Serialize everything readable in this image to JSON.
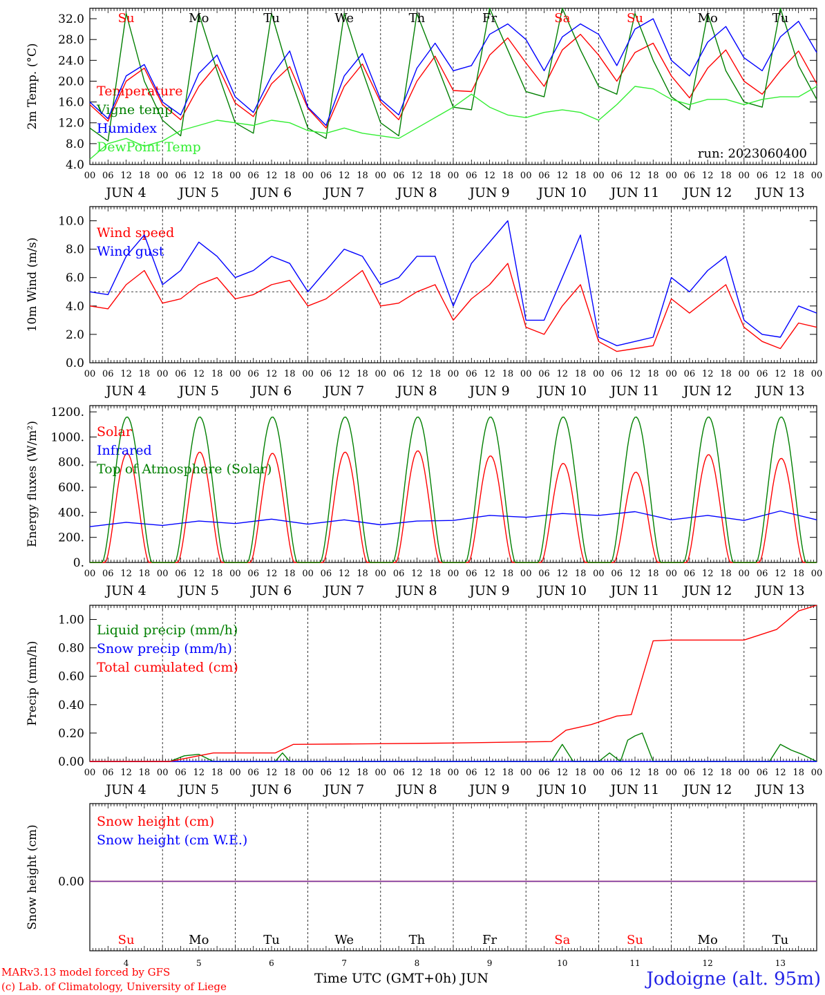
{
  "chart_data": [
    {
      "type": "line",
      "ylabel": "2m Temp. (°C)",
      "ylim": [
        4,
        34
      ],
      "yticks": [
        "4.0",
        "8.0",
        "12.0",
        "16.0",
        "20.0",
        "24.0",
        "28.0",
        "32.0"
      ],
      "ytick_values": [
        4,
        8,
        12,
        16,
        20,
        24,
        28,
        32
      ],
      "annotation": "run: 2023060400",
      "legend_placement": "left",
      "weekday_labels": [
        "Su",
        "Mo",
        "Tu",
        "We",
        "Th",
        "Fr",
        "Sa",
        "Su",
        "Mo",
        "Tu"
      ],
      "weekday_colors": [
        "#ff0000",
        "#000000",
        "#000000",
        "#000000",
        "#000000",
        "#000000",
        "#ff0000",
        "#ff0000",
        "#000000",
        "#000000"
      ],
      "series": [
        {
          "name": "Temperature",
          "color": "#ff0000",
          "x": [
            0,
            0.25,
            0.5,
            0.75,
            1,
            1.25,
            1.5,
            1.75,
            2,
            2.25,
            2.5,
            2.75,
            3,
            3.25,
            3.5,
            3.75,
            4,
            4.25,
            4.5,
            4.75,
            5,
            5.25,
            5.5,
            5.75,
            6,
            6.25,
            6.5,
            6.75,
            7,
            7.25,
            7.5,
            7.75,
            8,
            8.25,
            8.5,
            8.75,
            9,
            9.25,
            9.5,
            9.75,
            10
          ],
          "values": [
            15.5,
            12.3,
            20.0,
            22.5,
            15.5,
            12.6,
            19.0,
            23.2,
            15.8,
            13.2,
            19.5,
            22.8,
            14.8,
            11.0,
            19.0,
            23.3,
            16.0,
            12.6,
            20.0,
            24.8,
            18.2,
            18.0,
            25.0,
            28.3,
            23.5,
            19.0,
            26.0,
            29.0,
            25.0,
            20.0,
            25.5,
            27.3,
            21.0,
            16.8,
            22.5,
            26.0,
            20.0,
            17.5,
            22.0,
            25.8,
            19.5
          ]
        },
        {
          "name": "Vigne temp",
          "color": "#007f00",
          "x": [
            0,
            0.25,
            0.5,
            0.75,
            1,
            1.25,
            1.5,
            1.75,
            2,
            2.25,
            2.5,
            2.75,
            3,
            3.25,
            3.5,
            3.75,
            4,
            4.25,
            4.5,
            4.75,
            5,
            5.25,
            5.5,
            5.75,
            6,
            6.25,
            6.5,
            6.75,
            7,
            7.25,
            7.5,
            7.75,
            8,
            8.25,
            8.5,
            8.75,
            9,
            9.25,
            9.5,
            9.75,
            10
          ],
          "values": [
            11.0,
            8.5,
            33.0,
            20.0,
            12.5,
            9.5,
            33.0,
            22.0,
            12.0,
            10.0,
            33.0,
            21.0,
            11.0,
            9.0,
            33.0,
            22.0,
            12.0,
            9.5,
            33.0,
            24.0,
            15.0,
            14.5,
            34.0,
            26.0,
            18.0,
            17.0,
            34.0,
            26.0,
            19.0,
            17.5,
            33.0,
            24.0,
            17.0,
            14.5,
            33.0,
            22.0,
            16.0,
            15.0,
            34.0,
            23.0,
            16.5
          ]
        },
        {
          "name": "Humidex",
          "color": "#0000ff",
          "x": [
            0,
            0.25,
            0.5,
            0.75,
            1,
            1.25,
            1.5,
            1.75,
            2,
            2.25,
            2.5,
            2.75,
            3,
            3.25,
            3.5,
            3.75,
            4,
            4.25,
            4.5,
            4.75,
            5,
            5.25,
            5.5,
            5.75,
            6,
            6.25,
            6.5,
            6.75,
            7,
            7.25,
            7.5,
            7.75,
            8,
            8.25,
            8.5,
            8.75,
            9,
            9.25,
            9.5,
            9.75,
            10
          ],
          "values": [
            16.0,
            12.8,
            21.0,
            23.2,
            16.0,
            13.5,
            21.5,
            25.0,
            17.0,
            14.0,
            21.0,
            25.8,
            15.0,
            11.5,
            21.0,
            25.3,
            16.5,
            13.5,
            22.5,
            27.3,
            22.0,
            23.0,
            29.0,
            31.0,
            28.0,
            22.0,
            28.5,
            31.0,
            29.0,
            23.0,
            30.0,
            32.0,
            24.0,
            21.0,
            27.5,
            30.5,
            24.5,
            22.0,
            28.5,
            31.5,
            25.5
          ]
        },
        {
          "name": "DewPoint Temp",
          "color": "#33ee33",
          "x": [
            0,
            0.25,
            0.5,
            0.75,
            1,
            1.25,
            1.5,
            1.75,
            2,
            2.25,
            2.5,
            2.75,
            3,
            3.25,
            3.5,
            3.75,
            4,
            4.25,
            4.5,
            4.75,
            5,
            5.25,
            5.5,
            5.75,
            6,
            6.25,
            6.5,
            6.75,
            7,
            7.25,
            7.5,
            7.75,
            8,
            8.25,
            8.5,
            8.75,
            9,
            9.25,
            9.5,
            9.75,
            10
          ],
          "values": [
            5.0,
            8.0,
            9.0,
            7.5,
            8.5,
            10.5,
            11.5,
            12.5,
            12.0,
            11.5,
            12.5,
            12.0,
            10.5,
            10.0,
            11.0,
            10.0,
            9.5,
            9.0,
            11.0,
            13.0,
            15.0,
            17.5,
            15.0,
            13.5,
            13.0,
            14.0,
            14.5,
            14.0,
            12.5,
            15.5,
            19.0,
            18.5,
            16.5,
            15.5,
            16.5,
            16.5,
            15.5,
            16.5,
            17.0,
            17.0,
            19.0
          ]
        }
      ]
    },
    {
      "type": "line",
      "ylabel": "10m Wind (m/s)",
      "ylim": [
        0,
        11
      ],
      "yticks": [
        "0.0",
        "2.0",
        "4.0",
        "6.0",
        "8.0",
        "10.0"
      ],
      "ytick_values": [
        0,
        2,
        4,
        6,
        8,
        10
      ],
      "reference_line": 5,
      "legend_placement": "top-left",
      "series": [
        {
          "name": "Wind speed",
          "color": "#ff0000",
          "x": [
            0,
            0.25,
            0.5,
            0.75,
            1,
            1.25,
            1.5,
            1.75,
            2,
            2.25,
            2.5,
            2.75,
            3,
            3.25,
            3.5,
            3.75,
            4,
            4.25,
            4.5,
            4.75,
            5,
            5.25,
            5.5,
            5.75,
            6,
            6.25,
            6.5,
            6.75,
            7,
            7.25,
            7.5,
            7.75,
            8,
            8.25,
            8.5,
            8.75,
            9,
            9.25,
            9.5,
            9.75,
            10
          ],
          "values": [
            4.0,
            3.8,
            5.5,
            6.5,
            4.2,
            4.5,
            5.5,
            6.0,
            4.5,
            4.8,
            5.5,
            5.8,
            4.0,
            4.5,
            5.5,
            6.5,
            4.0,
            4.2,
            5.0,
            5.5,
            3.0,
            4.5,
            5.5,
            7.0,
            2.5,
            2.0,
            4.0,
            5.5,
            1.5,
            0.8,
            1.0,
            1.2,
            4.5,
            3.5,
            4.5,
            5.5,
            2.5,
            1.5,
            1.0,
            2.8,
            2.5
          ]
        },
        {
          "name": "Wind gust",
          "color": "#0000ff",
          "x": [
            0,
            0.25,
            0.5,
            0.75,
            1,
            1.25,
            1.5,
            1.75,
            2,
            2.25,
            2.5,
            2.75,
            3,
            3.25,
            3.5,
            3.75,
            4,
            4.25,
            4.5,
            4.75,
            5,
            5.25,
            5.5,
            5.75,
            6,
            6.25,
            6.5,
            6.75,
            7,
            7.25,
            7.5,
            7.75,
            8,
            8.25,
            8.5,
            8.75,
            9,
            9.25,
            9.5,
            9.75,
            10
          ],
          "values": [
            5.0,
            4.8,
            7.5,
            9.0,
            5.5,
            6.5,
            8.5,
            7.5,
            6.0,
            6.5,
            7.5,
            7.0,
            5.0,
            6.5,
            8.0,
            7.5,
            5.5,
            6.0,
            7.5,
            7.5,
            4.0,
            7.0,
            8.5,
            10.0,
            3.0,
            3.0,
            6.0,
            9.0,
            1.8,
            1.2,
            1.5,
            1.8,
            6.0,
            5.0,
            6.5,
            7.5,
            3.0,
            2.0,
            1.8,
            4.0,
            3.5
          ]
        }
      ]
    },
    {
      "type": "line",
      "ylabel": "Energy fluxes (W/m²)",
      "ylim": [
        0,
        1250
      ],
      "yticks": [
        "0.",
        "200.",
        "400.",
        "600.",
        "800.",
        "1000.",
        "1200."
      ],
      "ytick_values": [
        0,
        200,
        400,
        600,
        800,
        1000,
        1200
      ],
      "legend_placement": "top-left",
      "series": [
        {
          "name": "Solar",
          "color": "#ff0000",
          "day_peaks": [
            870,
            880,
            870,
            880,
            890,
            850,
            790,
            720,
            860,
            830
          ]
        },
        {
          "name": "Infrared",
          "color": "#0000ff",
          "x": [
            0,
            0.5,
            1,
            1.5,
            2,
            2.5,
            3,
            3.5,
            4,
            4.5,
            5,
            5.5,
            6,
            6.5,
            7,
            7.5,
            8,
            8.5,
            9,
            9.5,
            10
          ],
          "values": [
            285,
            320,
            295,
            330,
            310,
            345,
            305,
            340,
            300,
            330,
            335,
            375,
            360,
            390,
            375,
            405,
            340,
            375,
            335,
            410,
            340
          ]
        },
        {
          "name": "Top of Atmosphere (Solar)",
          "color": "#007f00",
          "day_peaks": [
            1160,
            1160,
            1160,
            1160,
            1160,
            1160,
            1160,
            1160,
            1160,
            1160
          ]
        }
      ]
    },
    {
      "type": "line",
      "ylabel": "Precip (mm/h)",
      "ylim": [
        0,
        1.1
      ],
      "yticks": [
        "0.00",
        "0.20",
        "0.40",
        "0.60",
        "0.80",
        "1.00"
      ],
      "ytick_values": [
        0,
        0.2,
        0.4,
        0.6,
        0.8,
        1.0
      ],
      "legend_placement": "top-left",
      "series": [
        {
          "name": "Liquid precip (mm/h)",
          "color": "#007f00",
          "x": [
            0,
            1.1,
            1.3,
            1.5,
            1.7,
            2.55,
            2.65,
            2.75,
            6.35,
            6.5,
            6.65,
            7.0,
            7.15,
            7.3,
            7.4,
            7.5,
            7.6,
            7.75,
            8.0,
            9.35,
            9.5,
            9.65,
            9.8,
            10
          ],
          "values": [
            0,
            0,
            0.04,
            0.05,
            0,
            0,
            0.06,
            0,
            0,
            0.12,
            0,
            0,
            0.06,
            0,
            0.15,
            0.18,
            0.2,
            0,
            0,
            0,
            0.12,
            0.08,
            0.05,
            0
          ]
        },
        {
          "name": "Snow precip (mm/h)",
          "color": "#0000ff",
          "x": [
            0,
            10
          ],
          "values": [
            0,
            0
          ]
        },
        {
          "name": "Total cumulated (cm)",
          "color": "#ff0000",
          "x": [
            0,
            1.1,
            1.7,
            2.55,
            2.8,
            4.0,
            5.0,
            6.35,
            6.55,
            6.9,
            7.25,
            7.45,
            7.75,
            8.0,
            9.0,
            9.45,
            9.75,
            10
          ],
          "values": [
            0,
            0,
            0.06,
            0.06,
            0.12,
            0.125,
            0.13,
            0.14,
            0.22,
            0.26,
            0.32,
            0.33,
            0.85,
            0.855,
            0.855,
            0.93,
            1.06,
            1.1
          ]
        }
      ]
    },
    {
      "type": "line",
      "ylabel": "Snow height (cm)",
      "yticks": [
        "0.00"
      ],
      "ytick_values": [
        0
      ],
      "legend_placement": "top-left",
      "series": [
        {
          "name": "Snow height (cm)",
          "color": "#ff0000",
          "x": [
            0,
            10
          ],
          "values": [
            0,
            0
          ]
        },
        {
          "name": "Snow height (cm W.E.)",
          "color": "#0000ff",
          "x": [
            0,
            10
          ],
          "values": [
            0,
            0
          ]
        }
      ]
    }
  ],
  "x_axis": {
    "hour_labels": [
      "00",
      "06",
      "12",
      "18"
    ],
    "final_hour_label": "00",
    "dates": [
      "JUN  4",
      "JUN  5",
      "JUN  6",
      "JUN  7",
      "JUN  8",
      "JUN  9",
      "JUN 10",
      "JUN 11",
      "JUN 12",
      "JUN 13"
    ],
    "day_numbers": [
      "4",
      "5",
      "6",
      "7",
      "8",
      "9",
      "10",
      "11",
      "12",
      "13"
    ],
    "title": "Time UTC (GMT+0h) JUN"
  },
  "footer": {
    "credit1": "MARv3.13 model forced by GFS",
    "credit2": "(c) Lab. of Climatology, University of Liege",
    "station": "Jodoigne (alt. 95m)"
  }
}
